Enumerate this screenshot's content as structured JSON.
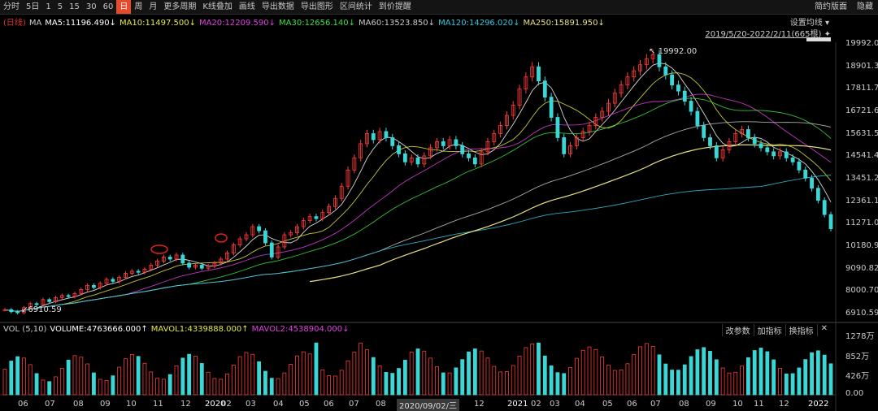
{
  "toolbar": {
    "items": [
      "分时",
      "5日",
      "1",
      "5",
      "15",
      "30",
      "60",
      "日",
      "周",
      "月",
      "更多周期",
      "K线叠加",
      "画线",
      "导出数据",
      "导出图形",
      "区间统计",
      "到价提醒"
    ],
    "active_index": 7,
    "right": [
      "简约版面",
      "隐藏"
    ]
  },
  "ma_legend": [
    {
      "text": "(日线)",
      "color": "#d9362b"
    },
    {
      "text": "MA",
      "color": "#ccc"
    },
    {
      "text": "MA5:11196.490↓",
      "color": "#ffffff"
    },
    {
      "text": "MA10:11497.500↓",
      "color": "#e8e840"
    },
    {
      "text": "MA20:12209.590↓",
      "color": "#e040e0"
    },
    {
      "text": "MA30:12656.140↓",
      "color": "#40e040"
    },
    {
      "text": "MA60:13523.850↓",
      "color": "#c8c8c8"
    },
    {
      "text": "MA120:14296.020↓",
      "color": "#30c8e0"
    },
    {
      "text": "MA250:15891.950↓",
      "color": "#e8e080"
    }
  ],
  "settings_label": "设置均线",
  "range_label": "2019/5/20-2022/2/11(665根)",
  "price_axis": [
    "19992.00",
    "18901.38",
    "17811.76",
    "16721.64",
    "15631.53",
    "14541.41",
    "13451.29",
    "12361.17",
    "11271.06",
    "10180.94",
    "9090.82",
    "8000.70",
    "6910.59"
  ],
  "high_label": "19992.00",
  "low_label": "6910.59",
  "vol_legend": [
    {
      "text": "VOL (5,10)",
      "color": "#ccc"
    },
    {
      "text": "VOLUME:4763666.000↑",
      "color": "#ffffff"
    },
    {
      "text": "MAVOL1:4339888.000↑",
      "color": "#e8e840"
    },
    {
      "text": "MAVOL2:4538904.000↓",
      "color": "#e040e0"
    }
  ],
  "vol_buttons": [
    "改参数",
    "加指标",
    "换指标",
    "✕"
  ],
  "vol_axis": [
    "1278万",
    "852万",
    "426万",
    "0.00"
  ],
  "x_axis": [
    {
      "t": "06",
      "year": false
    },
    {
      "t": "07",
      "year": false
    },
    {
      "t": "08",
      "year": false
    },
    {
      "t": "09",
      "year": false
    },
    {
      "t": "10",
      "year": false
    },
    {
      "t": "11",
      "year": false
    },
    {
      "t": "12",
      "year": false
    },
    {
      "t": "2020",
      "year": true
    },
    {
      "t": "02",
      "year": false
    },
    {
      "t": "03",
      "year": false
    },
    {
      "t": "04",
      "year": false
    },
    {
      "t": "05",
      "year": false
    },
    {
      "t": "06",
      "year": false
    },
    {
      "t": "07",
      "year": false
    },
    {
      "t": "08",
      "year": false
    },
    {
      "t": "12",
      "year": false
    },
    {
      "t": "2021",
      "year": true
    },
    {
      "t": "02",
      "year": false
    },
    {
      "t": "03",
      "year": false
    },
    {
      "t": "04",
      "year": false
    },
    {
      "t": "05",
      "year": false
    },
    {
      "t": "06",
      "year": false
    },
    {
      "t": "07",
      "year": false
    },
    {
      "t": "08",
      "year": false
    },
    {
      "t": "09",
      "year": false
    },
    {
      "t": "10",
      "year": false
    },
    {
      "t": "11",
      "year": false
    },
    {
      "t": "12",
      "year": false
    },
    {
      "t": "2022",
      "year": true
    }
  ],
  "date_tag": "2020/09/02/三",
  "chart_data": {
    "type": "candlestick",
    "ylim": [
      6910.59,
      19992.0
    ],
    "closes": [
      7100,
      7000,
      6950,
      7200,
      7400,
      7350,
      7600,
      7500,
      7700,
      7800,
      7750,
      7900,
      8100,
      8300,
      8200,
      8400,
      8600,
      8500,
      8700,
      8900,
      9000,
      8950,
      9100,
      9300,
      9500,
      9700,
      9600,
      9800,
      9400,
      9200,
      9300,
      9150,
      9250,
      9400,
      9600,
      9900,
      10300,
      10600,
      10800,
      11200,
      11000,
      10400,
      9700,
      10200,
      10800,
      10900,
      11200,
      11500,
      11700,
      11600,
      11900,
      12200,
      12600,
      13200,
      14000,
      14600,
      15300,
      15800,
      15500,
      15900,
      15600,
      15200,
      14800,
      14400,
      14600,
      14300,
      14700,
      15100,
      15400,
      15200,
      15500,
      15200,
      14800,
      14600,
      14300,
      14900,
      15400,
      15800,
      16200,
      16700,
      17200,
      18000,
      18600,
      19100,
      18400,
      17600,
      16600,
      15600,
      14800,
      15200,
      15600,
      15900,
      16200,
      16600,
      16900,
      17300,
      17800,
      18200,
      18600,
      18900,
      19200,
      19500,
      19700,
      19100,
      18700,
      18200,
      17900,
      17400,
      16900,
      16200,
      15600,
      15200,
      14600,
      15000,
      15400,
      15800,
      16000,
      15600,
      15300,
      15100,
      14900,
      14700,
      14900,
      14600,
      14400,
      14000,
      13600,
      13100,
      12500,
      11800,
      11100
    ]
  }
}
